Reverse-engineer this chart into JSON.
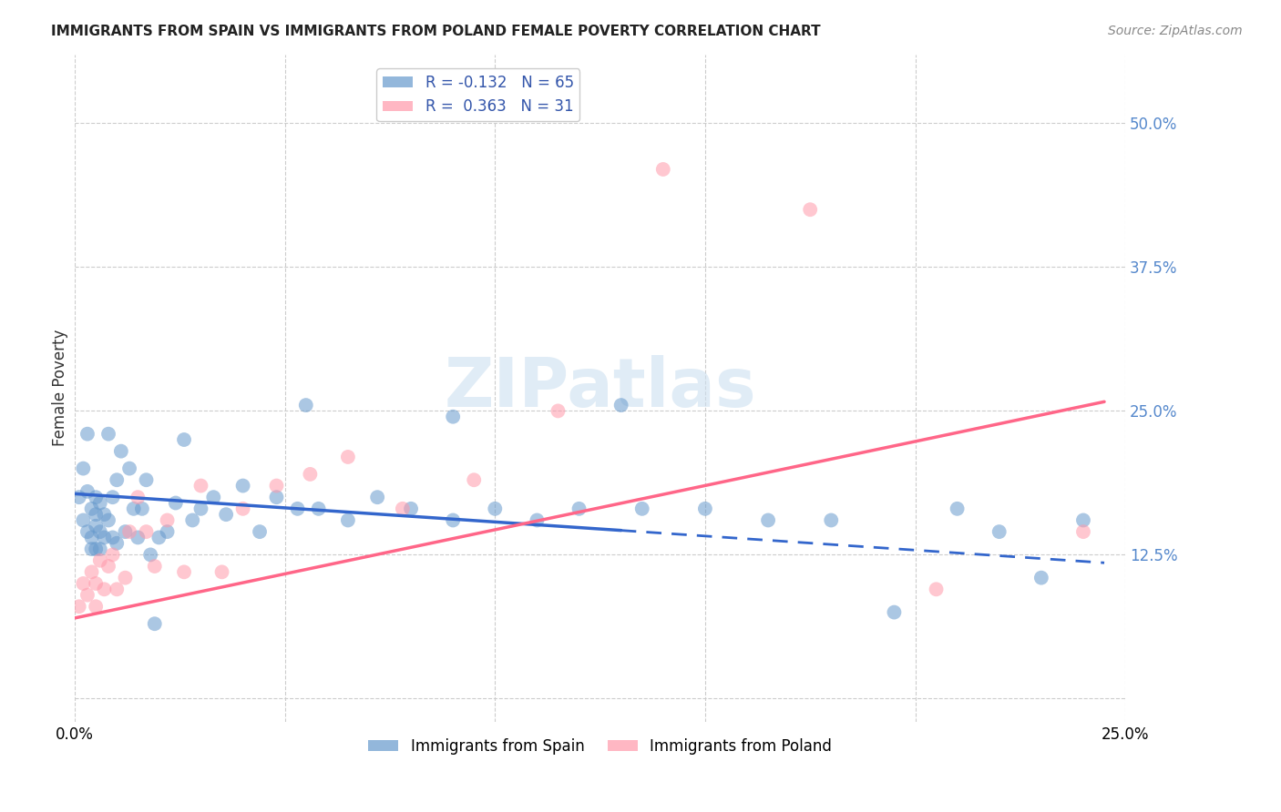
{
  "title": "IMMIGRANTS FROM SPAIN VS IMMIGRANTS FROM POLAND FEMALE POVERTY CORRELATION CHART",
  "source": "Source: ZipAtlas.com",
  "ylabel": "Female Poverty",
  "xlim": [
    0.0,
    0.25
  ],
  "ylim": [
    -0.02,
    0.56
  ],
  "spain_color": "#6699cc",
  "poland_color": "#ff99aa",
  "regression_spain_color": "#3366cc",
  "regression_poland_color": "#ff6688",
  "spain_x": [
    0.001,
    0.002,
    0.002,
    0.003,
    0.003,
    0.003,
    0.004,
    0.004,
    0.004,
    0.005,
    0.005,
    0.005,
    0.005,
    0.006,
    0.006,
    0.006,
    0.007,
    0.007,
    0.008,
    0.008,
    0.009,
    0.009,
    0.01,
    0.01,
    0.011,
    0.012,
    0.013,
    0.014,
    0.015,
    0.016,
    0.017,
    0.018,
    0.019,
    0.02,
    0.022,
    0.024,
    0.026,
    0.028,
    0.03,
    0.033,
    0.036,
    0.04,
    0.044,
    0.048,
    0.053,
    0.058,
    0.065,
    0.072,
    0.08,
    0.09,
    0.1,
    0.11,
    0.12,
    0.135,
    0.15,
    0.165,
    0.18,
    0.195,
    0.21,
    0.22,
    0.23,
    0.24,
    0.055,
    0.09,
    0.13
  ],
  "spain_y": [
    0.175,
    0.2,
    0.155,
    0.23,
    0.18,
    0.145,
    0.165,
    0.14,
    0.13,
    0.175,
    0.15,
    0.13,
    0.16,
    0.145,
    0.13,
    0.17,
    0.16,
    0.14,
    0.23,
    0.155,
    0.175,
    0.14,
    0.19,
    0.135,
    0.215,
    0.145,
    0.2,
    0.165,
    0.14,
    0.165,
    0.19,
    0.125,
    0.065,
    0.14,
    0.145,
    0.17,
    0.225,
    0.155,
    0.165,
    0.175,
    0.16,
    0.185,
    0.145,
    0.175,
    0.165,
    0.165,
    0.155,
    0.175,
    0.165,
    0.155,
    0.165,
    0.155,
    0.165,
    0.165,
    0.165,
    0.155,
    0.155,
    0.075,
    0.165,
    0.145,
    0.105,
    0.155,
    0.255,
    0.245,
    0.255
  ],
  "poland_x": [
    0.001,
    0.002,
    0.003,
    0.004,
    0.005,
    0.005,
    0.006,
    0.007,
    0.008,
    0.009,
    0.01,
    0.012,
    0.013,
    0.015,
    0.017,
    0.019,
    0.022,
    0.026,
    0.03,
    0.035,
    0.04,
    0.048,
    0.056,
    0.065,
    0.078,
    0.095,
    0.115,
    0.14,
    0.175,
    0.205,
    0.24
  ],
  "poland_y": [
    0.08,
    0.1,
    0.09,
    0.11,
    0.1,
    0.08,
    0.12,
    0.095,
    0.115,
    0.125,
    0.095,
    0.105,
    0.145,
    0.175,
    0.145,
    0.115,
    0.155,
    0.11,
    0.185,
    0.11,
    0.165,
    0.185,
    0.195,
    0.21,
    0.165,
    0.19,
    0.25,
    0.46,
    0.425,
    0.095,
    0.145
  ],
  "spain_line_x0": 0.0,
  "spain_line_x1": 0.245,
  "spain_line_y0": 0.178,
  "spain_line_y1": 0.118,
  "poland_line_x0": 0.0,
  "poland_line_x1": 0.245,
  "poland_line_y0": 0.07,
  "poland_line_y1": 0.258,
  "ytick_positions": [
    0.0,
    0.125,
    0.25,
    0.375,
    0.5
  ],
  "ytick_labels": [
    "",
    "12.5%",
    "25.0%",
    "37.5%",
    "50.0%"
  ],
  "xtick_positions": [
    0.0,
    0.25
  ],
  "xtick_labels": [
    "0.0%",
    "25.0%"
  ]
}
